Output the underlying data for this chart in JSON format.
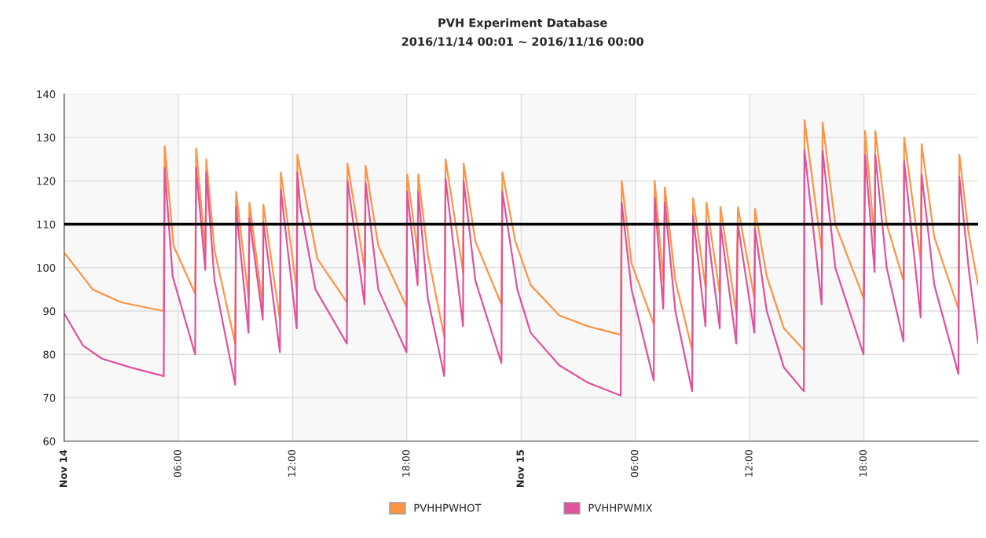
{
  "chart_data": {
    "type": "line",
    "title": "PVH Experiment Database",
    "subtitle": "2016/11/14 00:01 ~ 2016/11/16 00:00",
    "xlim": [
      "2016-11-14T00:00",
      "2016-11-16T00:00"
    ],
    "xticks": [
      {
        "value": "2016-11-14T00:00",
        "label": "Nov 14"
      },
      {
        "value": "2016-11-14T06:00",
        "label": "06:00"
      },
      {
        "value": "2016-11-14T12:00",
        "label": "12:00"
      },
      {
        "value": "2016-11-14T18:00",
        "label": "18:00"
      },
      {
        "value": "2016-11-15T00:00",
        "label": "Nov 15"
      },
      {
        "value": "2016-11-15T06:00",
        "label": "06:00"
      },
      {
        "value": "2016-11-15T12:00",
        "label": "12:00"
      },
      {
        "value": "2016-11-15T18:00",
        "label": "18:00"
      }
    ],
    "ylim": [
      60,
      140
    ],
    "yticks": [
      60,
      70,
      80,
      90,
      100,
      110,
      120,
      130,
      140
    ],
    "grid": true,
    "legend": "bottom",
    "marker": "none",
    "line_style": "solid",
    "ref_lines": [
      {
        "axis": "y",
        "value": 110,
        "color": "#000000"
      }
    ],
    "bands": [
      {
        "axis": "x",
        "from": "2016-11-14T00:00",
        "to": "2016-11-14T06:00",
        "color": "#f8f8f8"
      },
      {
        "axis": "x",
        "from": "2016-11-14T12:00",
        "to": "2016-11-14T18:00",
        "color": "#f8f8f8"
      },
      {
        "axis": "x",
        "from": "2016-11-15T00:00",
        "to": "2016-11-15T06:00",
        "color": "#f8f8f8"
      },
      {
        "axis": "x",
        "from": "2016-11-15T12:00",
        "to": "2016-11-15T18:00",
        "color": "#f8f8f8"
      }
    ],
    "series": [
      {
        "name": "PVHHPWHOT",
        "color": "#fe9343",
        "x": [
          "2016-11-14T00:00",
          "2016-11-14T01:30",
          "2016-11-14T03:00",
          "2016-11-14T05:14",
          "2016-11-14T05:17",
          "2016-11-14T05:45",
          "2016-11-14T06:53",
          "2016-11-14T06:56",
          "2016-11-14T07:25",
          "2016-11-14T07:28",
          "2016-11-14T07:54",
          "2016-11-14T08:59",
          "2016-11-14T09:02",
          "2016-11-14T09:41",
          "2016-11-14T09:44",
          "2016-11-14T10:26",
          "2016-11-14T10:28",
          "2016-11-14T11:20",
          "2016-11-14T11:23",
          "2016-11-14T12:13",
          "2016-11-14T12:15",
          "2016-11-14T12:36",
          "2016-11-14T13:18",
          "2016-11-14T14:51",
          "2016-11-14T14:53",
          "2016-11-14T15:47",
          "2016-11-14T15:50",
          "2016-11-14T16:30",
          "2016-11-14T17:59",
          "2016-11-14T18:01",
          "2016-11-14T18:34",
          "2016-11-14T18:36",
          "2016-11-14T19:06",
          "2016-11-14T19:58",
          "2016-11-14T20:02",
          "2016-11-14T20:57",
          "2016-11-14T20:59",
          "2016-11-14T21:36",
          "2016-11-14T22:58",
          "2016-11-14T23:01",
          "2016-11-14T23:42",
          "2016-11-15T00:30",
          "2016-11-15T02:00",
          "2016-11-15T03:30",
          "2016-11-15T05:14",
          "2016-11-15T05:17",
          "2016-11-15T05:48",
          "2016-11-15T06:58",
          "2016-11-15T07:01",
          "2016-11-15T07:28",
          "2016-11-15T07:33",
          "2016-11-15T08:06",
          "2016-11-15T08:59",
          "2016-11-15T09:02",
          "2016-11-15T09:41",
          "2016-11-15T09:44",
          "2016-11-15T10:26",
          "2016-11-15T10:28",
          "2016-11-15T11:18",
          "2016-11-15T11:23",
          "2016-11-15T12:15",
          "2016-11-15T12:17",
          "2016-11-15T12:54",
          "2016-11-15T13:48",
          "2016-11-15T14:51",
          "2016-11-15T14:53",
          "2016-11-15T15:47",
          "2016-11-15T15:50",
          "2016-11-15T16:30",
          "2016-11-15T17:59",
          "2016-11-15T18:04",
          "2016-11-15T18:34",
          "2016-11-15T18:36",
          "2016-11-15T19:12",
          "2016-11-15T20:05",
          "2016-11-15T20:07",
          "2016-11-15T20:59",
          "2016-11-15T21:02",
          "2016-11-15T21:42",
          "2016-11-15T22:58",
          "2016-11-15T23:01",
          "2016-11-15T23:30",
          "2016-11-16T00:00"
        ],
        "values": [
          103.5,
          95,
          92,
          90,
          128,
          105,
          94,
          127.5,
          104,
          125,
          104,
          82.5,
          117.5,
          93,
          115,
          91,
          114.5,
          88,
          122,
          95,
          126,
          118,
          102,
          92,
          124,
          99.5,
          123.5,
          105,
          91,
          121.5,
          103.5,
          121.5,
          103,
          84,
          125,
          99,
          124,
          106,
          91.5,
          122,
          106,
          96,
          89,
          86.5,
          84.5,
          120,
          101,
          87,
          120,
          97,
          118.5,
          97,
          81,
          116,
          95.5,
          115,
          94,
          114,
          89.5,
          114,
          93,
          113.5,
          98,
          86,
          81,
          134,
          104,
          133.5,
          110,
          93,
          131.5,
          106,
          131.5,
          110,
          97,
          130,
          101.5,
          128.5,
          107,
          90.5,
          126,
          108,
          96
        ]
      },
      {
        "name": "PVHHPWMIX",
        "color": "#e0529c",
        "x": [
          "2016-11-14T00:00",
          "2016-11-14T01:00",
          "2016-11-14T02:00",
          "2016-11-14T03:30",
          "2016-11-14T05:14",
          "2016-11-14T05:17",
          "2016-11-14T05:42",
          "2016-11-14T06:53",
          "2016-11-14T06:56",
          "2016-11-14T07:25",
          "2016-11-14T07:28",
          "2016-11-14T07:54",
          "2016-11-14T08:59",
          "2016-11-14T09:02",
          "2016-11-14T09:41",
          "2016-11-14T09:44",
          "2016-11-14T10:26",
          "2016-11-14T10:28",
          "2016-11-14T11:20",
          "2016-11-14T11:23",
          "2016-11-14T12:13",
          "2016-11-14T12:15",
          "2016-11-14T12:24",
          "2016-11-14T13:12",
          "2016-11-14T14:51",
          "2016-11-14T14:53",
          "2016-11-14T15:47",
          "2016-11-14T15:50",
          "2016-11-14T16:30",
          "2016-11-14T17:59",
          "2016-11-14T18:01",
          "2016-11-14T18:34",
          "2016-11-14T18:36",
          "2016-11-14T19:06",
          "2016-11-14T19:58",
          "2016-11-14T20:02",
          "2016-11-14T20:57",
          "2016-11-14T20:59",
          "2016-11-14T21:36",
          "2016-11-14T22:58",
          "2016-11-14T23:01",
          "2016-11-14T23:48",
          "2016-11-15T00:30",
          "2016-11-15T02:00",
          "2016-11-15T03:30",
          "2016-11-15T05:14",
          "2016-11-15T05:17",
          "2016-11-15T05:48",
          "2016-11-15T06:58",
          "2016-11-15T07:01",
          "2016-11-15T07:28",
          "2016-11-15T07:33",
          "2016-11-15T08:06",
          "2016-11-15T08:59",
          "2016-11-15T09:02",
          "2016-11-15T09:41",
          "2016-11-15T09:44",
          "2016-11-15T10:26",
          "2016-11-15T10:28",
          "2016-11-15T11:18",
          "2016-11-15T11:23",
          "2016-11-15T12:15",
          "2016-11-15T12:17",
          "2016-11-15T12:54",
          "2016-11-15T13:48",
          "2016-11-15T14:51",
          "2016-11-15T14:53",
          "2016-11-15T15:47",
          "2016-11-15T15:50",
          "2016-11-15T16:30",
          "2016-11-15T17:59",
          "2016-11-15T18:04",
          "2016-11-15T18:34",
          "2016-11-15T18:36",
          "2016-11-15T19:12",
          "2016-11-15T20:05",
          "2016-11-15T20:07",
          "2016-11-15T20:59",
          "2016-11-15T21:02",
          "2016-11-15T21:42",
          "2016-11-15T22:58",
          "2016-11-15T23:01",
          "2016-11-15T23:30",
          "2016-11-16T00:00"
        ],
        "values": [
          89.5,
          82,
          79,
          77,
          75,
          123,
          98,
          80,
          123,
          99.5,
          122,
          97,
          73,
          114,
          85,
          111.5,
          88,
          110.5,
          80.5,
          118,
          86,
          122,
          114,
          95,
          82.5,
          120,
          91.5,
          119.5,
          95,
          80.5,
          117.5,
          96,
          117.5,
          93,
          75,
          120.5,
          86.5,
          120,
          97,
          78,
          117.5,
          95,
          85,
          77.5,
          73.5,
          70.5,
          115,
          95,
          74,
          116,
          90.5,
          115,
          90,
          71.5,
          112,
          86.5,
          110.5,
          86,
          110,
          82.5,
          110,
          85,
          109,
          90,
          77,
          71.5,
          127,
          91.5,
          127,
          100,
          80,
          126,
          99,
          126,
          100,
          83,
          124.5,
          88.5,
          121.5,
          96,
          75.5,
          121,
          100,
          82.5
        ]
      }
    ]
  }
}
